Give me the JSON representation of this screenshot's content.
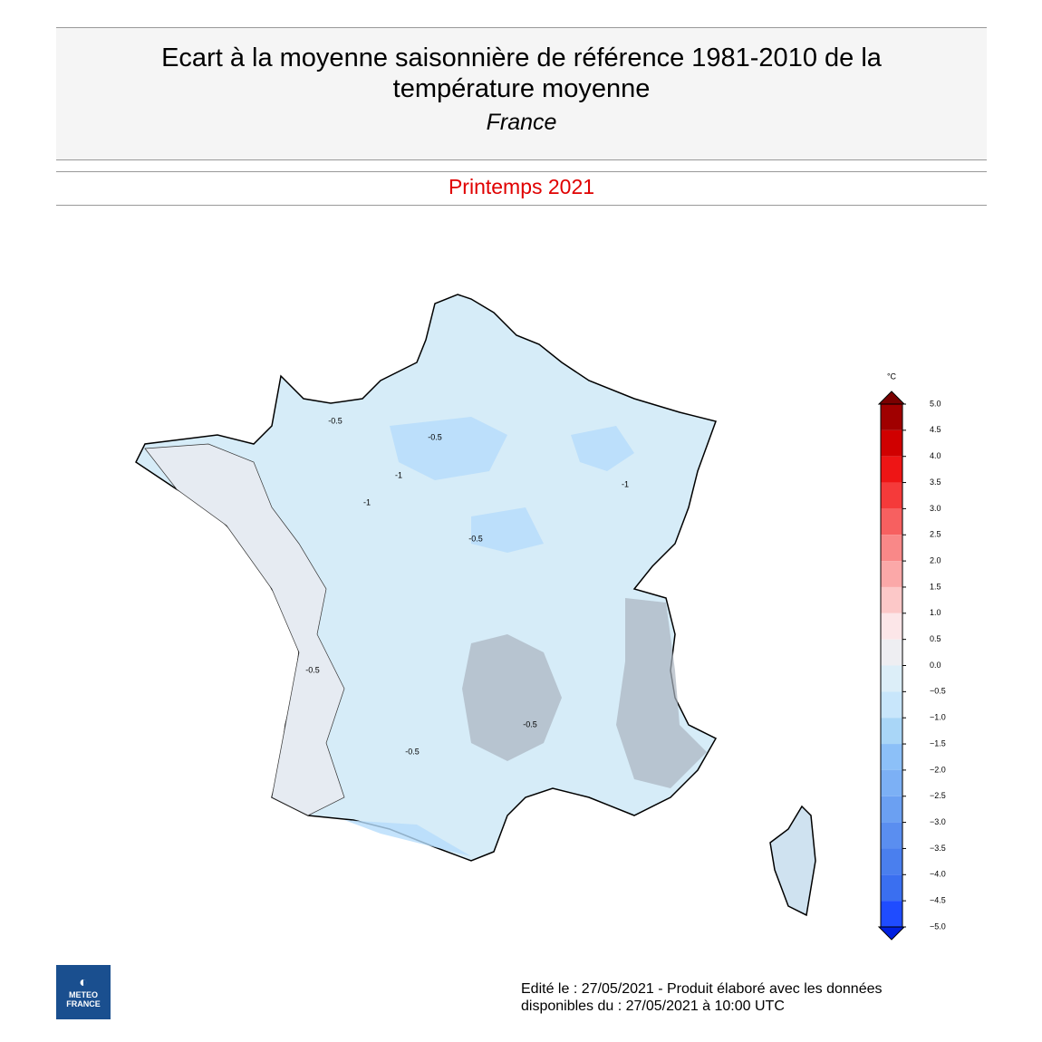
{
  "header": {
    "title_lines": [
      "Ecart à la moyenne saisonnière de référence 1981-2010 de la",
      "température moyenne"
    ],
    "subtitle": "France",
    "period": "Printemps 2021"
  },
  "map": {
    "contour_labels": [
      "-0.5",
      "-0.5",
      "-1",
      "-0.5",
      "-1",
      "-0.5",
      "-0.5",
      "-1",
      "-0.5"
    ]
  },
  "colorbar": {
    "unit": "°C",
    "ticks": [
      {
        "value": 5,
        "label": "5.0"
      },
      {
        "value": 4.5,
        "label": "4.5"
      },
      {
        "value": 4,
        "label": "4.0"
      },
      {
        "value": 3.5,
        "label": "3.5"
      },
      {
        "value": 3,
        "label": "3.0"
      },
      {
        "value": 2.5,
        "label": "2.5"
      },
      {
        "value": 2,
        "label": "2.0"
      },
      {
        "value": 1.5,
        "label": "1.5"
      },
      {
        "value": 1,
        "label": "1.0"
      },
      {
        "value": 0.5,
        "label": "0.5"
      },
      {
        "value": 0,
        "label": "0.0"
      },
      {
        "value": -0.5,
        "label": "−0.5"
      },
      {
        "value": -1,
        "label": "−1.0"
      },
      {
        "value": -1.5,
        "label": "−1.5"
      },
      {
        "value": -2,
        "label": "−2.0"
      },
      {
        "value": -2.5,
        "label": "−2.5"
      },
      {
        "value": -3,
        "label": "−3.0"
      },
      {
        "value": -3.5,
        "label": "−3.5"
      },
      {
        "value": -4,
        "label": "−4.0"
      },
      {
        "value": -4.5,
        "label": "−4.5"
      },
      {
        "value": -5,
        "label": "−5.0"
      }
    ],
    "colors": [
      "#a00000",
      "#d00000",
      "#ee1515",
      "#f53a3a",
      "#f76060",
      "#f98888",
      "#fba8a8",
      "#fcc8c8",
      "#fce6e8",
      "#eeeef2",
      "#dceef8",
      "#c8e6fb",
      "#a9d6f7",
      "#8cc0f8",
      "#7cb0f5",
      "#6ba0f2",
      "#5a8ef0",
      "#4a7fee",
      "#3a6ff0",
      "#1f4cff"
    ]
  },
  "footer": {
    "lines": [
      "Edité le : 27/05/2021 - Produit élaboré avec les données",
      "disponibles du : 27/05/2021 à 10:00 UTC"
    ]
  },
  "logo": {
    "lines": [
      "METEO",
      "FRANCE"
    ]
  }
}
